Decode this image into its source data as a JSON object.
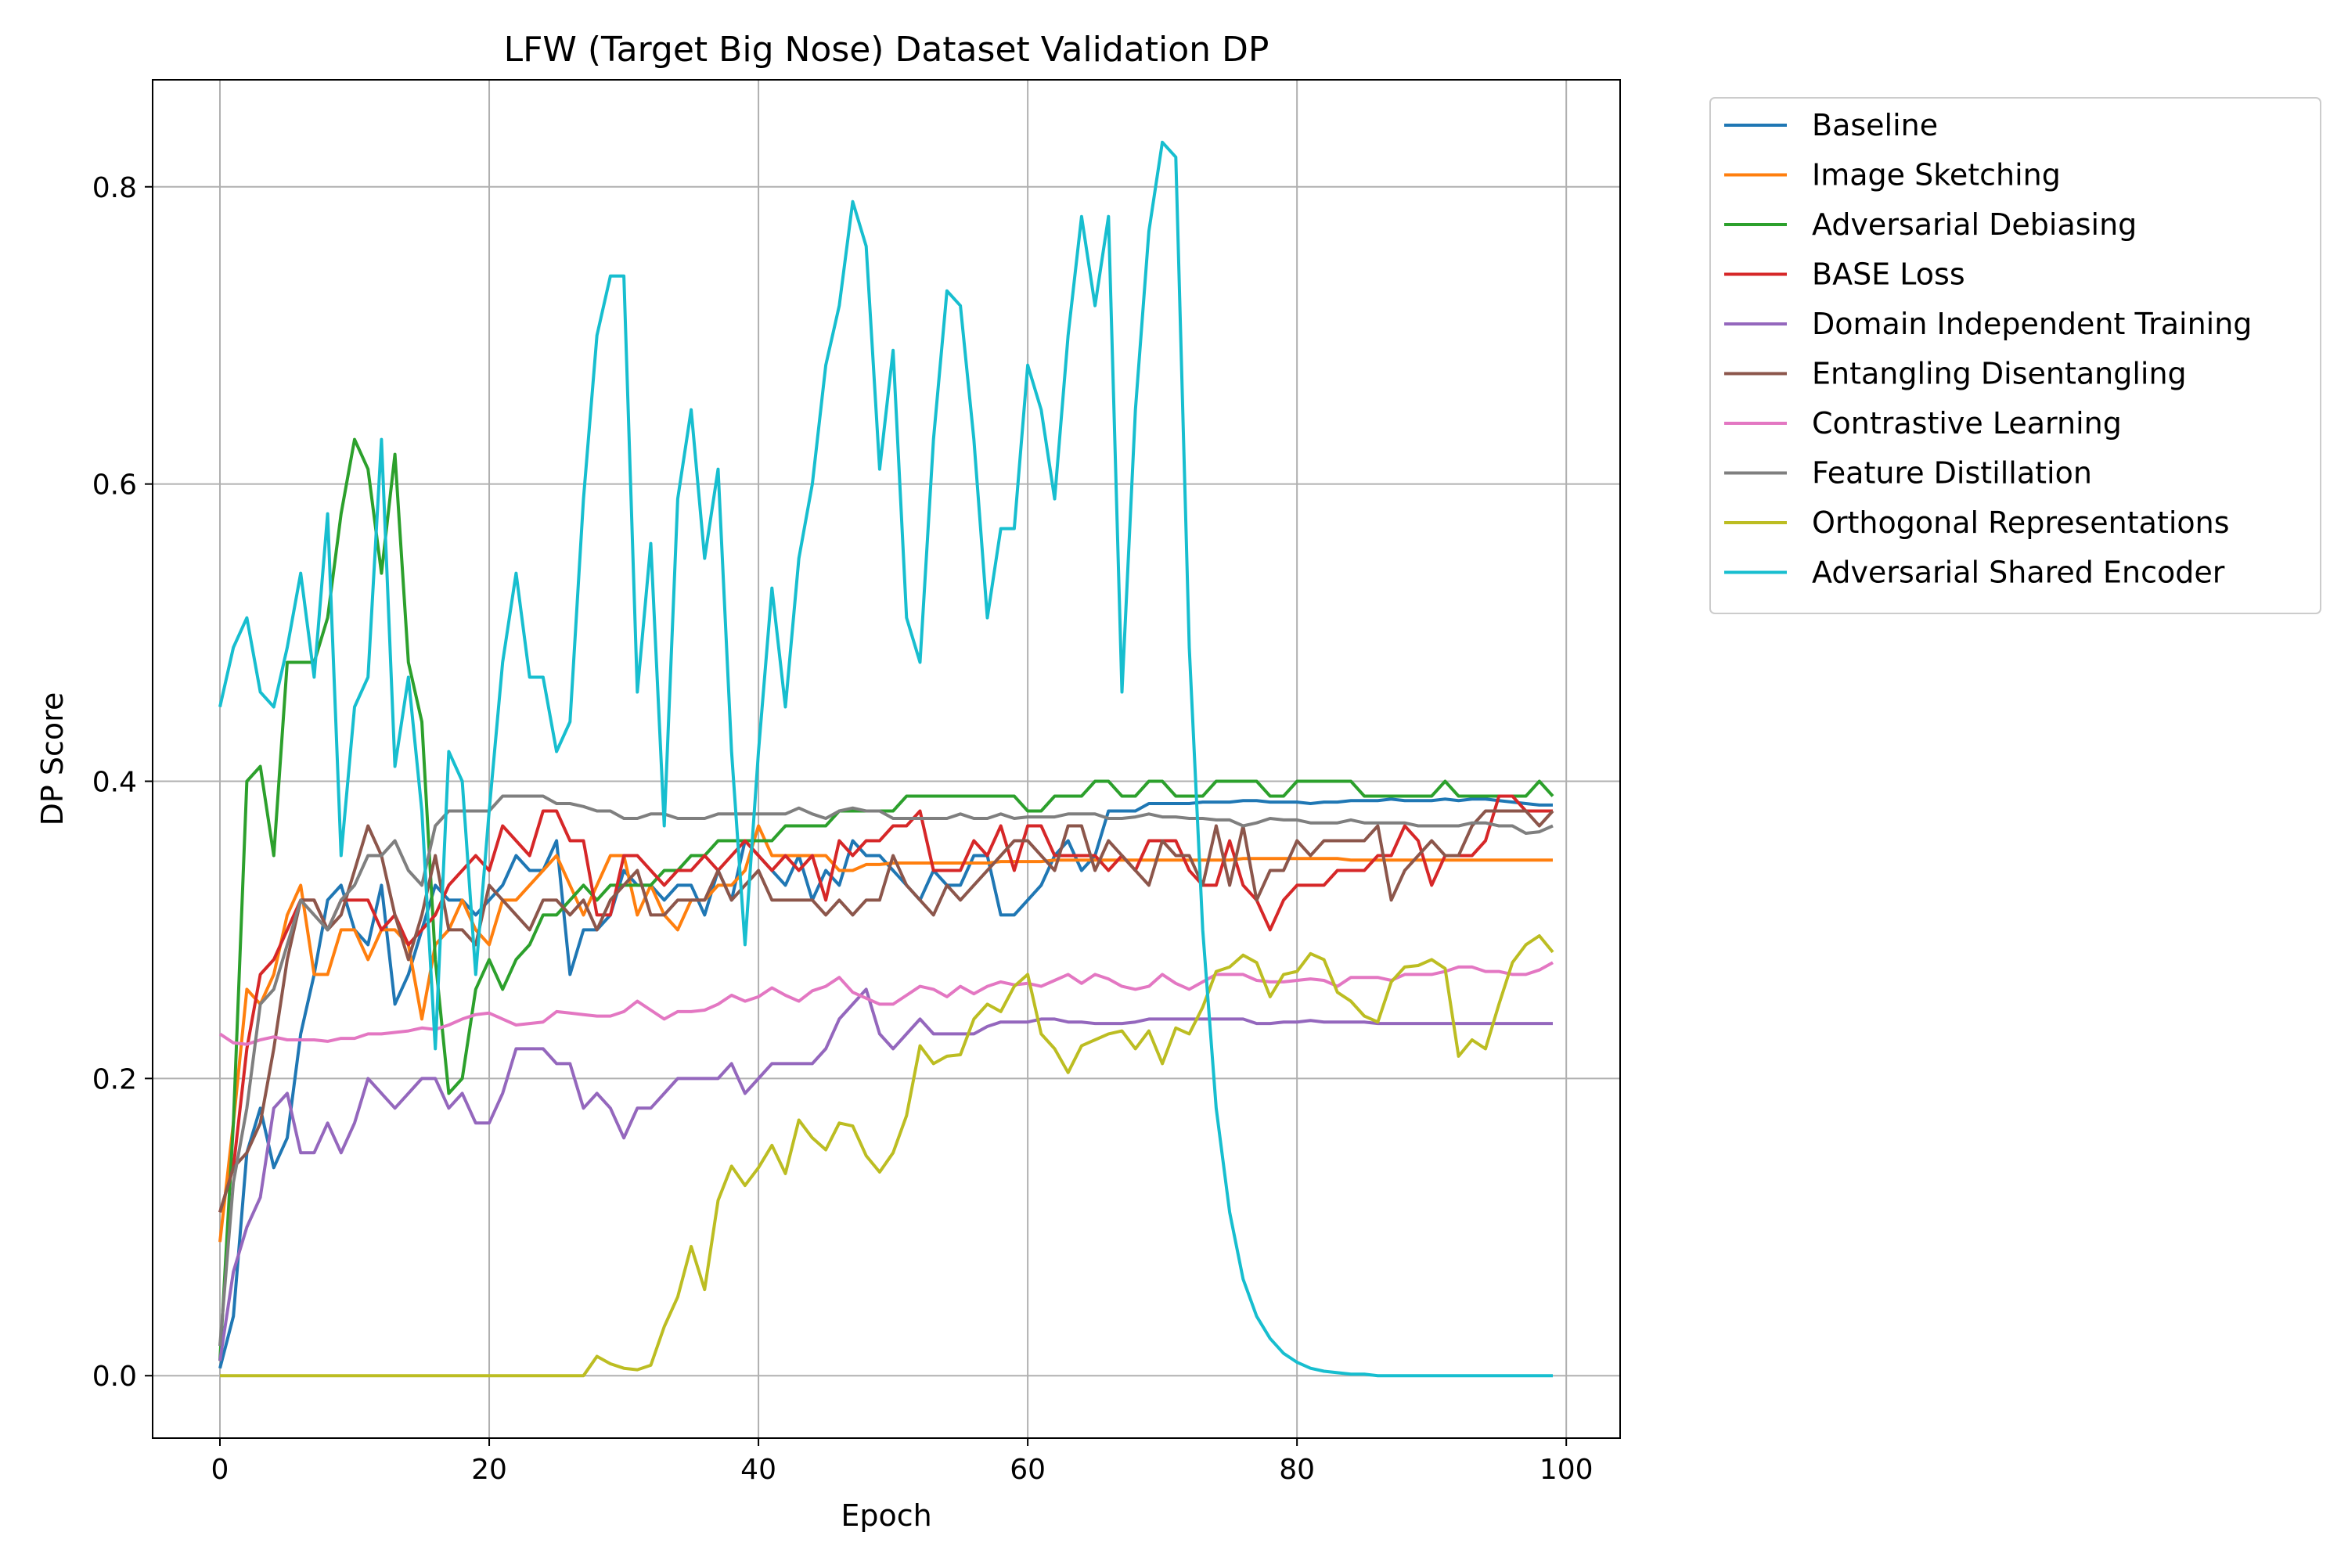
{
  "chart_data": {
    "type": "line",
    "title": "LFW (Target Big Nose) Dataset Validation DP",
    "xlabel": "Epoch",
    "ylabel": "DP Score",
    "xlim": [
      -5,
      104
    ],
    "ylim": [
      -0.042,
      0.872
    ],
    "xticks": [
      0,
      20,
      40,
      60,
      80,
      100
    ],
    "yticks": [
      0.0,
      0.2,
      0.4,
      0.6,
      0.8
    ],
    "xtick_labels": [
      "0",
      "20",
      "40",
      "60",
      "80",
      "100"
    ],
    "ytick_labels": [
      "0.0",
      "0.2",
      "0.4",
      "0.6",
      "0.8"
    ],
    "grid": true,
    "legend_position": "outside-top-right",
    "series": [
      {
        "name": "Baseline",
        "color": "#1f77b4",
        "values": [
          0.005,
          0.04,
          0.15,
          0.18,
          0.14,
          0.16,
          0.23,
          0.27,
          0.32,
          0.33,
          0.3,
          0.29,
          0.33,
          0.25,
          0.27,
          0.3,
          0.33,
          0.32,
          0.32,
          0.31,
          0.32,
          0.33,
          0.35,
          0.34,
          0.34,
          0.36,
          0.27,
          0.3,
          0.3,
          0.31,
          0.34,
          0.33,
          0.33,
          0.32,
          0.33,
          0.33,
          0.31,
          0.34,
          0.32,
          0.36,
          0.35,
          0.34,
          0.33,
          0.35,
          0.32,
          0.34,
          0.33,
          0.36,
          0.35,
          0.35,
          0.34,
          0.33,
          0.32,
          0.34,
          0.33,
          0.33,
          0.35,
          0.35,
          0.31,
          0.31,
          0.32,
          0.33,
          0.35,
          0.36,
          0.34,
          0.35,
          0.38,
          0.38,
          0.38,
          0.385,
          0.385,
          0.385,
          0.385,
          0.386,
          0.386,
          0.386,
          0.387,
          0.387,
          0.386,
          0.386,
          0.386,
          0.385,
          0.386,
          0.386,
          0.387,
          0.387,
          0.387,
          0.388,
          0.387,
          0.387,
          0.387,
          0.388,
          0.387,
          0.388,
          0.388,
          0.387,
          0.386,
          0.385,
          0.384,
          0.384
        ]
      },
      {
        "name": "Image Sketching",
        "color": "#ff7f0e",
        "values": [
          0.09,
          0.17,
          0.26,
          0.25,
          0.27,
          0.31,
          0.33,
          0.27,
          0.27,
          0.3,
          0.3,
          0.28,
          0.3,
          0.3,
          0.29,
          0.24,
          0.29,
          0.3,
          0.32,
          0.3,
          0.29,
          0.32,
          0.32,
          0.33,
          0.34,
          0.35,
          0.33,
          0.31,
          0.33,
          0.35,
          0.35,
          0.31,
          0.33,
          0.31,
          0.3,
          0.32,
          0.32,
          0.33,
          0.33,
          0.34,
          0.37,
          0.35,
          0.35,
          0.35,
          0.35,
          0.35,
          0.34,
          0.34,
          0.344,
          0.344,
          0.345,
          0.345,
          0.345,
          0.345,
          0.345,
          0.345,
          0.345,
          0.345,
          0.346,
          0.346,
          0.346,
          0.346,
          0.347,
          0.347,
          0.347,
          0.347,
          0.347,
          0.347,
          0.347,
          0.347,
          0.347,
          0.347,
          0.347,
          0.347,
          0.347,
          0.347,
          0.348,
          0.348,
          0.348,
          0.348,
          0.348,
          0.348,
          0.348,
          0.348,
          0.347,
          0.347,
          0.347,
          0.347,
          0.347,
          0.347,
          0.347,
          0.347,
          0.347,
          0.347,
          0.347,
          0.347,
          0.347,
          0.347,
          0.347,
          0.347
        ]
      },
      {
        "name": "Adversarial Debiasing",
        "color": "#2ca02c",
        "values": [
          0.01,
          0.17,
          0.4,
          0.41,
          0.35,
          0.48,
          0.48,
          0.48,
          0.51,
          0.58,
          0.63,
          0.61,
          0.54,
          0.62,
          0.48,
          0.44,
          0.28,
          0.19,
          0.2,
          0.26,
          0.28,
          0.26,
          0.28,
          0.29,
          0.31,
          0.31,
          0.32,
          0.33,
          0.32,
          0.33,
          0.33,
          0.33,
          0.33,
          0.34,
          0.34,
          0.35,
          0.35,
          0.36,
          0.36,
          0.36,
          0.36,
          0.36,
          0.37,
          0.37,
          0.37,
          0.37,
          0.38,
          0.38,
          0.38,
          0.38,
          0.38,
          0.39,
          0.39,
          0.39,
          0.39,
          0.39,
          0.39,
          0.39,
          0.39,
          0.39,
          0.38,
          0.38,
          0.39,
          0.39,
          0.39,
          0.4,
          0.4,
          0.39,
          0.39,
          0.4,
          0.4,
          0.39,
          0.39,
          0.39,
          0.4,
          0.4,
          0.4,
          0.4,
          0.39,
          0.39,
          0.4,
          0.4,
          0.4,
          0.4,
          0.4,
          0.39,
          0.39,
          0.39,
          0.39,
          0.39,
          0.39,
          0.4,
          0.39,
          0.39,
          0.39,
          0.39,
          0.39,
          0.39,
          0.4,
          0.39
        ]
      },
      {
        "name": "BASE Loss",
        "color": "#d62728",
        "values": [
          0.11,
          0.14,
          0.22,
          0.27,
          0.28,
          0.3,
          0.32,
          0.32,
          0.3,
          0.32,
          0.32,
          0.32,
          0.3,
          0.31,
          0.29,
          0.3,
          0.31,
          0.33,
          0.34,
          0.35,
          0.34,
          0.37,
          0.36,
          0.35,
          0.38,
          0.38,
          0.36,
          0.36,
          0.31,
          0.31,
          0.35,
          0.35,
          0.34,
          0.33,
          0.34,
          0.34,
          0.35,
          0.34,
          0.35,
          0.36,
          0.35,
          0.34,
          0.35,
          0.34,
          0.35,
          0.32,
          0.36,
          0.35,
          0.36,
          0.36,
          0.37,
          0.37,
          0.38,
          0.34,
          0.34,
          0.34,
          0.36,
          0.35,
          0.37,
          0.34,
          0.37,
          0.37,
          0.35,
          0.35,
          0.35,
          0.35,
          0.34,
          0.35,
          0.34,
          0.36,
          0.36,
          0.36,
          0.34,
          0.33,
          0.33,
          0.36,
          0.33,
          0.32,
          0.3,
          0.32,
          0.33,
          0.33,
          0.33,
          0.34,
          0.34,
          0.34,
          0.35,
          0.35,
          0.37,
          0.36,
          0.33,
          0.35,
          0.35,
          0.35,
          0.36,
          0.39,
          0.39,
          0.38,
          0.38,
          0.38
        ]
      },
      {
        "name": "Domain Independent Training",
        "color": "#9467bd",
        "values": [
          0.01,
          0.07,
          0.1,
          0.12,
          0.18,
          0.19,
          0.15,
          0.15,
          0.17,
          0.15,
          0.17,
          0.2,
          0.19,
          0.18,
          0.19,
          0.2,
          0.2,
          0.18,
          0.19,
          0.17,
          0.17,
          0.19,
          0.22,
          0.22,
          0.22,
          0.21,
          0.21,
          0.18,
          0.19,
          0.18,
          0.16,
          0.18,
          0.18,
          0.19,
          0.2,
          0.2,
          0.2,
          0.2,
          0.21,
          0.19,
          0.2,
          0.21,
          0.21,
          0.21,
          0.21,
          0.22,
          0.24,
          0.25,
          0.26,
          0.23,
          0.22,
          0.23,
          0.24,
          0.23,
          0.23,
          0.23,
          0.23,
          0.235,
          0.238,
          0.238,
          0.238,
          0.24,
          0.24,
          0.238,
          0.238,
          0.237,
          0.237,
          0.237,
          0.238,
          0.24,
          0.24,
          0.24,
          0.24,
          0.24,
          0.24,
          0.24,
          0.24,
          0.237,
          0.237,
          0.238,
          0.238,
          0.239,
          0.238,
          0.238,
          0.238,
          0.238,
          0.237,
          0.237,
          0.237,
          0.237,
          0.237,
          0.237,
          0.237,
          0.237,
          0.237,
          0.237,
          0.237,
          0.237,
          0.237,
          0.237
        ]
      },
      {
        "name": "Entangling Disentangling",
        "color": "#8c564b",
        "values": [
          0.11,
          0.14,
          0.15,
          0.17,
          0.22,
          0.28,
          0.32,
          0.32,
          0.3,
          0.31,
          0.34,
          0.37,
          0.35,
          0.31,
          0.28,
          0.31,
          0.35,
          0.3,
          0.3,
          0.29,
          0.33,
          0.32,
          0.31,
          0.3,
          0.32,
          0.32,
          0.31,
          0.32,
          0.3,
          0.32,
          0.33,
          0.34,
          0.31,
          0.31,
          0.32,
          0.32,
          0.32,
          0.34,
          0.32,
          0.33,
          0.34,
          0.32,
          0.32,
          0.32,
          0.32,
          0.31,
          0.32,
          0.31,
          0.32,
          0.32,
          0.35,
          0.33,
          0.32,
          0.31,
          0.33,
          0.32,
          0.33,
          0.34,
          0.35,
          0.36,
          0.36,
          0.35,
          0.34,
          0.37,
          0.37,
          0.34,
          0.36,
          0.35,
          0.34,
          0.33,
          0.36,
          0.35,
          0.35,
          0.33,
          0.37,
          0.33,
          0.37,
          0.32,
          0.34,
          0.34,
          0.36,
          0.35,
          0.36,
          0.36,
          0.36,
          0.36,
          0.37,
          0.32,
          0.34,
          0.35,
          0.36,
          0.35,
          0.35,
          0.37,
          0.38,
          0.38,
          0.38,
          0.38,
          0.37,
          0.38
        ]
      },
      {
        "name": "Contrastive Learning",
        "color": "#e377c2",
        "values": [
          0.23,
          0.224,
          0.223,
          0.226,
          0.228,
          0.226,
          0.226,
          0.226,
          0.225,
          0.227,
          0.227,
          0.23,
          0.23,
          0.231,
          0.232,
          0.234,
          0.233,
          0.236,
          0.24,
          0.243,
          0.244,
          0.24,
          0.236,
          0.237,
          0.238,
          0.245,
          0.244,
          0.243,
          0.242,
          0.242,
          0.245,
          0.252,
          0.246,
          0.24,
          0.245,
          0.245,
          0.246,
          0.25,
          0.256,
          0.252,
          0.255,
          0.261,
          0.256,
          0.252,
          0.259,
          0.262,
          0.268,
          0.258,
          0.254,
          0.25,
          0.25,
          0.256,
          0.262,
          0.26,
          0.255,
          0.262,
          0.257,
          0.262,
          0.265,
          0.263,
          0.264,
          0.262,
          0.266,
          0.27,
          0.264,
          0.27,
          0.267,
          0.262,
          0.26,
          0.262,
          0.27,
          0.264,
          0.26,
          0.265,
          0.27,
          0.27,
          0.27,
          0.266,
          0.265,
          0.265,
          0.266,
          0.267,
          0.266,
          0.262,
          0.268,
          0.268,
          0.268,
          0.266,
          0.27,
          0.27,
          0.27,
          0.272,
          0.275,
          0.275,
          0.272,
          0.272,
          0.27,
          0.27,
          0.273,
          0.278
        ]
      },
      {
        "name": "Feature Distillation",
        "color": "#7f7f7f",
        "values": [
          0.02,
          0.13,
          0.18,
          0.25,
          0.26,
          0.29,
          0.32,
          0.31,
          0.3,
          0.32,
          0.33,
          0.35,
          0.35,
          0.36,
          0.34,
          0.33,
          0.37,
          0.38,
          0.38,
          0.38,
          0.38,
          0.39,
          0.39,
          0.39,
          0.39,
          0.385,
          0.385,
          0.383,
          0.38,
          0.38,
          0.375,
          0.375,
          0.378,
          0.378,
          0.375,
          0.375,
          0.375,
          0.378,
          0.378,
          0.378,
          0.378,
          0.378,
          0.378,
          0.382,
          0.378,
          0.375,
          0.38,
          0.382,
          0.38,
          0.38,
          0.375,
          0.375,
          0.375,
          0.375,
          0.375,
          0.378,
          0.375,
          0.375,
          0.378,
          0.375,
          0.376,
          0.376,
          0.376,
          0.378,
          0.378,
          0.378,
          0.375,
          0.375,
          0.376,
          0.378,
          0.376,
          0.376,
          0.375,
          0.375,
          0.374,
          0.374,
          0.37,
          0.372,
          0.375,
          0.374,
          0.374,
          0.372,
          0.372,
          0.372,
          0.374,
          0.372,
          0.372,
          0.372,
          0.372,
          0.37,
          0.37,
          0.37,
          0.37,
          0.372,
          0.372,
          0.37,
          0.37,
          0.365,
          0.366,
          0.37
        ]
      },
      {
        "name": "Orthogonal Representations",
        "color": "#bcbd22",
        "values": [
          0.0,
          0.0,
          0.0,
          0.0,
          0.0,
          0.0,
          0.0,
          0.0,
          0.0,
          0.0,
          0.0,
          0.0,
          0.0,
          0.0,
          0.0,
          0.0,
          0.0,
          0.0,
          0.0,
          0.0,
          0.0,
          0.0,
          0.0,
          0.0,
          0.0,
          0.0,
          0.0,
          0.0,
          0.013,
          0.008,
          0.005,
          0.004,
          0.007,
          0.033,
          0.053,
          0.087,
          0.058,
          0.118,
          0.141,
          0.128,
          0.14,
          0.155,
          0.136,
          0.172,
          0.16,
          0.152,
          0.17,
          0.168,
          0.148,
          0.137,
          0.15,
          0.175,
          0.222,
          0.21,
          0.215,
          0.216,
          0.24,
          0.25,
          0.245,
          0.262,
          0.27,
          0.23,
          0.22,
          0.204,
          0.222,
          0.226,
          0.23,
          0.232,
          0.22,
          0.232,
          0.21,
          0.234,
          0.23,
          0.248,
          0.272,
          0.275,
          0.283,
          0.278,
          0.255,
          0.27,
          0.272,
          0.284,
          0.28,
          0.258,
          0.252,
          0.242,
          0.238,
          0.265,
          0.275,
          0.276,
          0.28,
          0.274,
          0.215,
          0.226,
          0.22,
          0.25,
          0.278,
          0.29,
          0.296,
          0.285
        ]
      },
      {
        "name": "Adversarial Shared Encoder",
        "color": "#17becf",
        "values": [
          0.45,
          0.49,
          0.51,
          0.46,
          0.45,
          0.49,
          0.54,
          0.47,
          0.58,
          0.35,
          0.45,
          0.47,
          0.63,
          0.41,
          0.47,
          0.38,
          0.22,
          0.42,
          0.4,
          0.27,
          0.38,
          0.48,
          0.54,
          0.47,
          0.47,
          0.42,
          0.44,
          0.59,
          0.7,
          0.74,
          0.74,
          0.46,
          0.56,
          0.37,
          0.59,
          0.65,
          0.55,
          0.61,
          0.42,
          0.29,
          0.42,
          0.53,
          0.45,
          0.55,
          0.6,
          0.68,
          0.72,
          0.79,
          0.76,
          0.61,
          0.69,
          0.51,
          0.48,
          0.63,
          0.73,
          0.72,
          0.63,
          0.51,
          0.57,
          0.57,
          0.68,
          0.65,
          0.59,
          0.7,
          0.78,
          0.72,
          0.78,
          0.46,
          0.65,
          0.77,
          0.83,
          0.82,
          0.49,
          0.3,
          0.18,
          0.11,
          0.065,
          0.04,
          0.025,
          0.015,
          0.009,
          0.005,
          0.003,
          0.002,
          0.001,
          0.001,
          0.0,
          0.0,
          0.0,
          0.0,
          0.0,
          0.0,
          0.0,
          0.0,
          0.0,
          0.0,
          0.0,
          0.0,
          0.0,
          0.0
        ]
      }
    ]
  }
}
